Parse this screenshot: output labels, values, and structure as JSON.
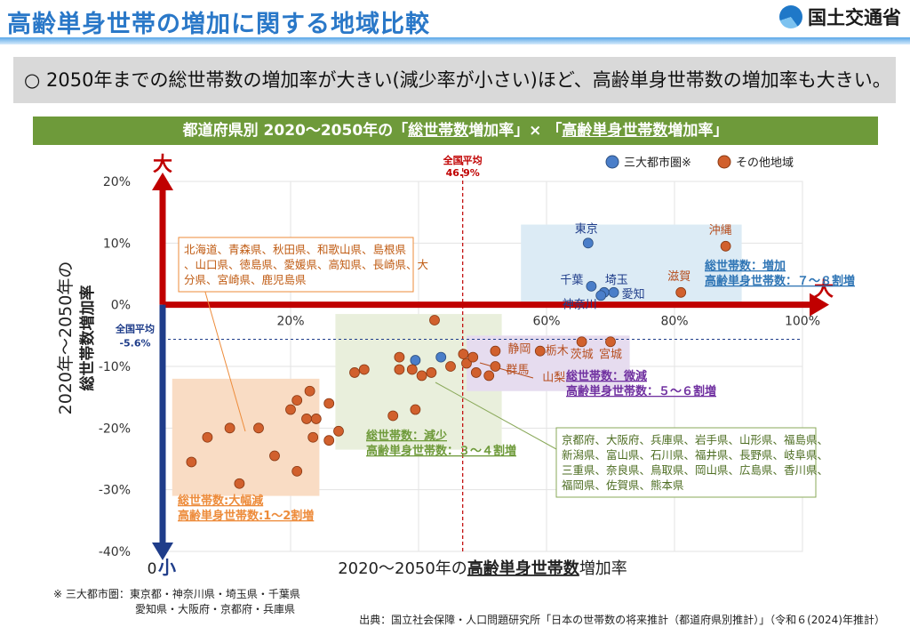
{
  "header": {
    "title": "高齢単身世帯の増加に関する地域比較",
    "logo_text": "国土交通省"
  },
  "summary": {
    "bullet": "○",
    "text": "2050年までの総世帯数の増加率が大きい(減少率が小さい)ほど、高齢単身世帯数の増加率も大きい。"
  },
  "banner": {
    "prefix": "都道府県別 2020～2050年の「",
    "term1": "総世帯数",
    "mid1": "増加率」× 「",
    "term2": "高齢単身世帯数",
    "suffix": "増加率」"
  },
  "chart_data": {
    "type": "scatter",
    "xlabel_parts": [
      "2020～2050年の",
      "高齢単身世帯数",
      "増加率"
    ],
    "ylabel_line1": "2020年～2050年の",
    "ylabel_line2": "総世帯数増加率",
    "xlim": [
      0,
      100
    ],
    "ylim": [
      -40,
      20
    ],
    "x_ticks": [
      {
        "v": 20,
        "label": "20%"
      },
      {
        "v": 40,
        "label": "40%"
      },
      {
        "v": 60,
        "label": "60%"
      },
      {
        "v": 80,
        "label": "80%"
      },
      {
        "v": 100,
        "label": "100%"
      }
    ],
    "y_ticks": [
      {
        "v": 20,
        "label": "20%"
      },
      {
        "v": 10,
        "label": "10%"
      },
      {
        "v": 0,
        "label": "0%"
      },
      {
        "v": -10,
        "label": "-10%"
      },
      {
        "v": -20,
        "label": "-20%"
      },
      {
        "v": -30,
        "label": "-30%"
      },
      {
        "v": -40,
        "label": "-40%"
      }
    ],
    "origin_label": "0",
    "grid": true,
    "legend": [
      {
        "name": "三大都市圏※",
        "color": "#4a7ec9"
      },
      {
        "name": "その他地域",
        "color": "#d1602d"
      }
    ],
    "axis_big_x": "大",
    "axis_big_y": "大",
    "axis_small_y": "小",
    "avg_x": {
      "value": 46.9,
      "label1": "全国平均",
      "label2": "46.9%"
    },
    "avg_y": {
      "value": -5.6,
      "label1": "全国平均",
      "label2": "-5.6%"
    },
    "colors": {
      "metro": "#4a7ec9",
      "other": "#d1602d",
      "axis_x": "#c00000",
      "axis_y": "#1f3d8a"
    },
    "series": [
      {
        "name": "三大都市圏※",
        "points": [
          {
            "x": 66.5,
            "y": 10,
            "label": "東京"
          },
          {
            "x": 67,
            "y": 3,
            "label": "千葉"
          },
          {
            "x": 69,
            "y": 2,
            "label": "埼玉"
          },
          {
            "x": 68.5,
            "y": 1.5,
            "label": "神奈川"
          },
          {
            "x": 70.5,
            "y": 2,
            "label": "愛知"
          },
          {
            "x": 39.5,
            "y": -9,
            "label": ""
          },
          {
            "x": 43.5,
            "y": -8.5,
            "label": ""
          }
        ]
      },
      {
        "name": "その他地域",
        "points": [
          {
            "x": 88,
            "y": 9.5,
            "label": "沖縄"
          },
          {
            "x": 81,
            "y": 2,
            "label": "滋賀"
          },
          {
            "x": 65.5,
            "y": -6,
            "label": "茨城"
          },
          {
            "x": 70,
            "y": -6,
            "label": "宮城"
          },
          {
            "x": 59,
            "y": -7.5,
            "label": "栃木"
          },
          {
            "x": 52,
            "y": -7.5,
            "label": "静岡"
          },
          {
            "x": 52,
            "y": -10,
            "label": "群馬"
          },
          {
            "x": 51,
            "y": -11.5,
            "label": "山梨"
          },
          {
            "x": 42.5,
            "y": -2.5,
            "label": ""
          },
          {
            "x": 47,
            "y": -8,
            "label": ""
          },
          {
            "x": 47.5,
            "y": -9.5,
            "label": ""
          },
          {
            "x": 48.5,
            "y": -8.5,
            "label": ""
          },
          {
            "x": 49,
            "y": -11,
            "label": ""
          },
          {
            "x": 45,
            "y": -10,
            "label": ""
          },
          {
            "x": 42,
            "y": -11,
            "label": ""
          },
          {
            "x": 40.5,
            "y": -11.5,
            "label": ""
          },
          {
            "x": 39,
            "y": -10.5,
            "label": ""
          },
          {
            "x": 37,
            "y": -8.5,
            "label": ""
          },
          {
            "x": 37,
            "y": -10.5,
            "label": ""
          },
          {
            "x": 31.5,
            "y": -10.5,
            "label": ""
          },
          {
            "x": 30,
            "y": -11,
            "label": ""
          },
          {
            "x": 26,
            "y": -16,
            "label": ""
          },
          {
            "x": 39.5,
            "y": -17,
            "label": ""
          },
          {
            "x": 36,
            "y": -18,
            "label": ""
          },
          {
            "x": 27.5,
            "y": -20.5,
            "label": ""
          },
          {
            "x": 26,
            "y": -22,
            "label": ""
          },
          {
            "x": 23,
            "y": -14,
            "label": ""
          },
          {
            "x": 21,
            "y": -15.5,
            "label": ""
          },
          {
            "x": 20,
            "y": -17,
            "label": ""
          },
          {
            "x": 22.5,
            "y": -18.5,
            "label": ""
          },
          {
            "x": 24,
            "y": -18.5,
            "label": ""
          },
          {
            "x": 23.5,
            "y": -21.5,
            "label": ""
          },
          {
            "x": 15,
            "y": -20,
            "label": ""
          },
          {
            "x": 17.5,
            "y": -24.5,
            "label": ""
          },
          {
            "x": 10.5,
            "y": -20,
            "label": ""
          },
          {
            "x": 7,
            "y": -21.5,
            "label": ""
          },
          {
            "x": 4.5,
            "y": -25.5,
            "label": ""
          },
          {
            "x": 12,
            "y": -29,
            "label": ""
          },
          {
            "x": 21,
            "y": -27,
            "label": ""
          }
        ]
      }
    ],
    "annotations": {
      "group_large_decline": {
        "line1": "総世帯数:大幅減",
        "line2": "高齢単身世帯数:1～2割増",
        "color": "#ed8b3a"
      },
      "group_decline": {
        "line1": "総世帯数：減少",
        "line2": "高齢単身世帯数：３～４割増",
        "color": "#6e9a3a"
      },
      "group_slight": {
        "line1": "総世帯数：微減",
        "line2": "高齢単身世帯数：５～６割増",
        "color": "#7030a0"
      },
      "group_increase": {
        "line1": "総世帯数：増加",
        "line2": "高齢単身世帯数：７～８割増",
        "color": "#2f75b5"
      },
      "note_orange": "北海道、青森県、秋田県、和歌山県、島根県、山口県、徳島県、愛媛県、高知県、長崎県、大分県、宮崎県、鹿児島県",
      "note_green": "京都府、大阪府、兵庫県、岩手県、山形県、福島県、新潟県、富山県、石川県、福井県、長野県、岐阜県、三重県、奈良県、鳥取県、岡山県、広島県、香川県、福岡県、佐賀県、熊本県"
    }
  },
  "footnote": {
    "line1": "※ 三大都市圏：東京都・神奈川県・埼玉県・千葉県",
    "line2": "愛知県・大阪府・京都府・兵庫県"
  },
  "source": "出典：国立社会保障・人口問題研究所「日本の世帯数の将来推計（都道府県別推計）」（令和６(2024)年推計）"
}
